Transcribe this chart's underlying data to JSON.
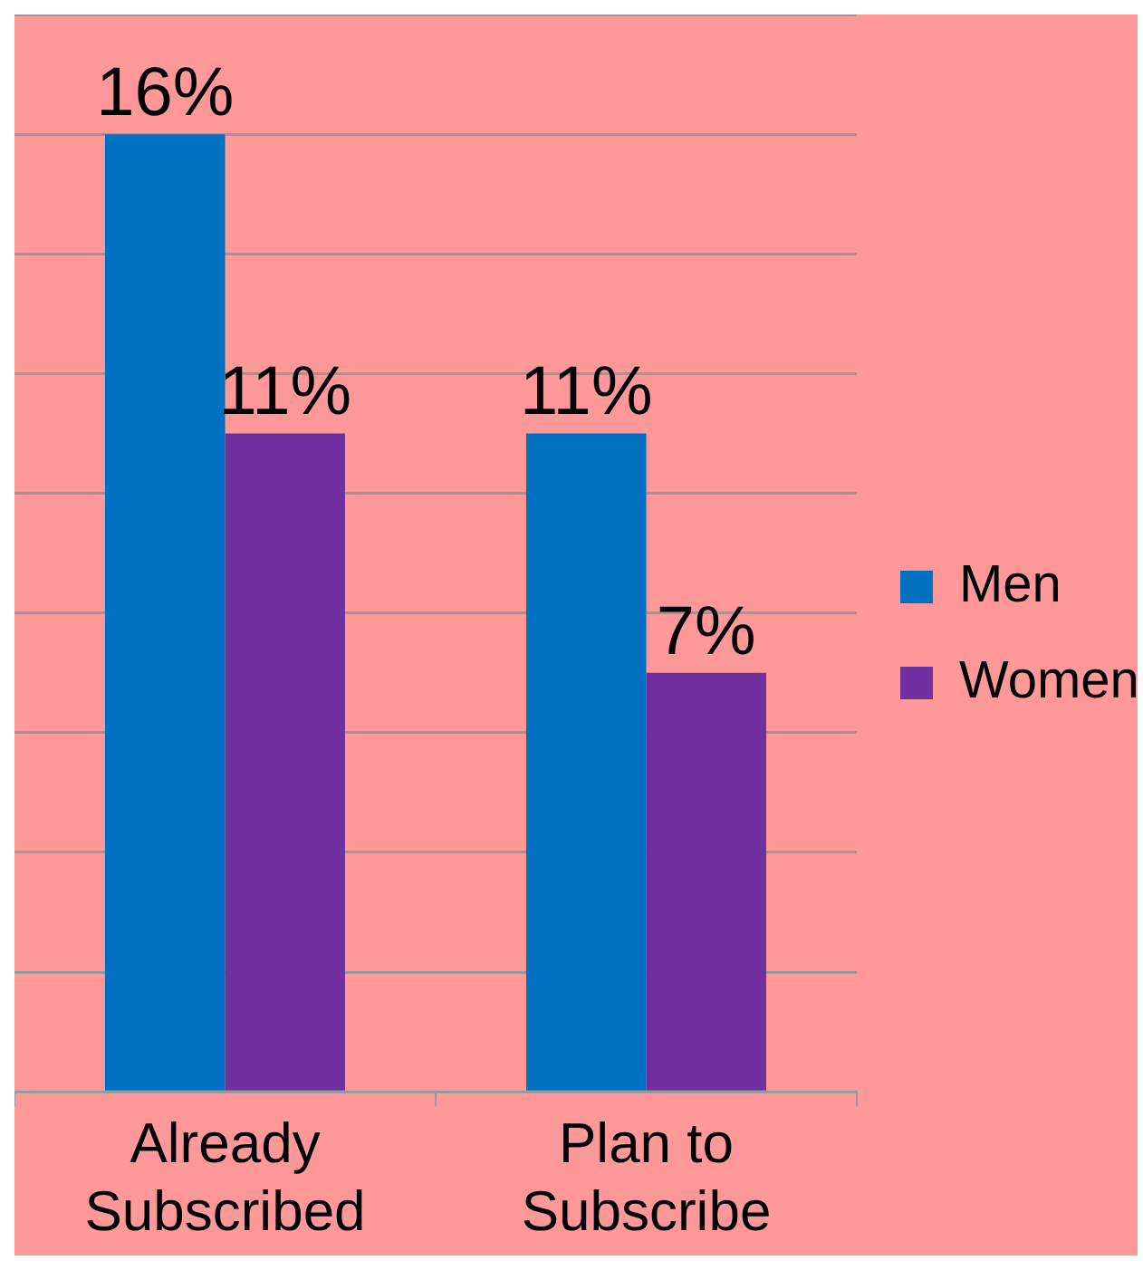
{
  "chart_data": {
    "type": "bar",
    "categories": [
      "Already Subscribed",
      "Plan to Subscribe"
    ],
    "series": [
      {
        "name": "Men",
        "color": "#0070c0",
        "values": [
          16,
          11
        ],
        "value_labels": [
          "16%",
          "11%"
        ]
      },
      {
        "name": "Women",
        "color": "#7030a0",
        "values": [
          11,
          7
        ],
        "value_labels": [
          "11%",
          "7%"
        ]
      }
    ],
    "ylim": [
      0,
      18
    ],
    "yticks": [
      {
        "value": 0,
        "label": null
      },
      {
        "value": 2,
        "label": null
      },
      {
        "value": 4,
        "label": null
      },
      {
        "value": 6,
        "label": null
      },
      {
        "value": 8,
        "label": null
      },
      {
        "value": 10,
        "label": null
      },
      {
        "value": 12,
        "label": null
      },
      {
        "value": 14,
        "label": null
      },
      {
        "value": 16,
        "label": null
      },
      {
        "value": 18,
        "label": null
      }
    ],
    "grid": "y",
    "legend": "right",
    "tick_labels": "x"
  }
}
